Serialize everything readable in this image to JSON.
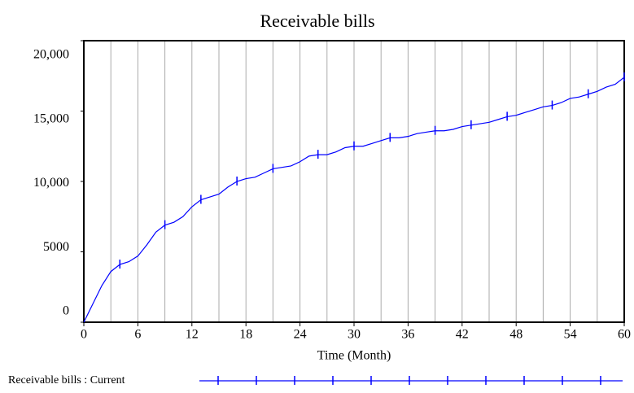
{
  "chart_data": {
    "type": "line",
    "title": "Receivable bills",
    "x_label": "Time (Month)",
    "x": [
      0,
      1,
      2,
      3,
      4,
      5,
      6,
      7,
      8,
      9,
      10,
      11,
      12,
      13,
      14,
      15,
      16,
      17,
      18,
      19,
      20,
      21,
      22,
      23,
      24,
      25,
      26,
      27,
      28,
      29,
      30,
      31,
      32,
      33,
      34,
      35,
      36,
      37,
      38,
      39,
      40,
      41,
      42,
      43,
      44,
      45,
      46,
      47,
      48,
      49,
      50,
      51,
      52,
      53,
      54,
      55,
      56,
      57,
      58,
      59,
      60
    ],
    "series": [
      {
        "name": "Receivable bills : Current",
        "color": "#0000ff",
        "values": [
          0,
          1300,
          2600,
          3600,
          4100,
          4300,
          4700,
          5500,
          6400,
          6900,
          7100,
          7500,
          8200,
          8700,
          8900,
          9100,
          9600,
          10000,
          10200,
          10300,
          10600,
          10900,
          11000,
          11100,
          11400,
          11800,
          11900,
          11900,
          12100,
          12400,
          12500,
          12500,
          12700,
          12900,
          13100,
          13100,
          13200,
          13400,
          13500,
          13600,
          13600,
          13700,
          13900,
          14000,
          14100,
          14200,
          14400,
          14600,
          14700,
          14900,
          15100,
          15300,
          15400,
          15600,
          15900,
          16000,
          16200,
          16400,
          16700,
          16900,
          17400
        ]
      }
    ],
    "xlim": [
      0,
      60
    ],
    "xticks": [
      0,
      6,
      12,
      18,
      24,
      30,
      36,
      42,
      48,
      54,
      60
    ],
    "xgrid": [
      0,
      3,
      6,
      9,
      12,
      15,
      18,
      21,
      24,
      27,
      30,
      33,
      36,
      39,
      42,
      45,
      48,
      51,
      54,
      57,
      60
    ],
    "ylim": [
      0,
      20000
    ],
    "yticks": [
      {
        "value": 0,
        "label": "0"
      },
      {
        "value": 5000,
        "label": "5000"
      },
      {
        "value": 10000,
        "label": "10,000"
      },
      {
        "value": 15000,
        "label": "15,000"
      },
      {
        "value": 20000,
        "label": "20,000"
      }
    ],
    "grid": true
  }
}
